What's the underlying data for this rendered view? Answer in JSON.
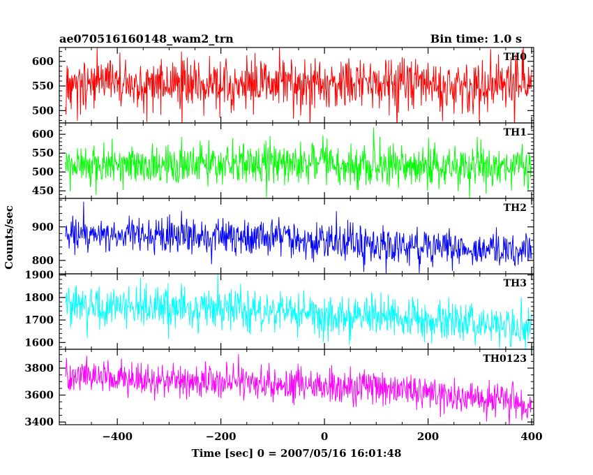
{
  "header": {
    "title": "ae070516160148_wam2_trn",
    "bin_time": "Bin time: 1.0 s"
  },
  "axes": {
    "xlabel": "Time [sec] 0 = 2007/05/16 16:01:48",
    "ylabel": "Counts/sec",
    "x_ticks": [
      "−400",
      "−200",
      "0",
      "200",
      "400"
    ]
  },
  "chart_data": {
    "type": "line",
    "xlim": [
      -512,
      404
    ],
    "x_range": [
      -500,
      400
    ],
    "x_step": 1,
    "x_ticks": [
      -400,
      -200,
      0,
      200,
      400
    ],
    "x_minor_step": 50,
    "panels": [
      {
        "name": "TH0",
        "color": "#ff0000",
        "ylim": [
          475,
          628
        ],
        "yticks": [
          500,
          550,
          600
        ],
        "ytick_labels": [
          "500",
          "550",
          "600"
        ],
        "y_minor_step": 10,
        "trend": [
          [
            -500,
            555
          ],
          [
            0,
            555
          ],
          [
            400,
            555
          ]
        ],
        "noise_sd": 27
      },
      {
        "name": "TH1",
        "color": "#00ff00",
        "ylim": [
          430,
          630
        ],
        "yticks": [
          450,
          500,
          550,
          600
        ],
        "ytick_labels": [
          "450",
          "500",
          "550",
          "600"
        ],
        "y_minor_step": 10,
        "trend": [
          [
            -500,
            520
          ],
          [
            0,
            520
          ],
          [
            400,
            515
          ]
        ],
        "noise_sd": 27
      },
      {
        "name": "TH2",
        "color": "#0000ff",
        "ylim": [
          760,
          985
        ],
        "yticks": [
          800,
          900
        ],
        "ytick_labels": [
          "800",
          "900"
        ],
        "y_minor_step": 20,
        "trend": [
          [
            -500,
            885
          ],
          [
            -200,
            870
          ],
          [
            0,
            855
          ],
          [
            200,
            840
          ],
          [
            400,
            825
          ]
        ],
        "noise_sd": 28
      },
      {
        "name": "TH3",
        "color": "#00ffff",
        "ylim": [
          1570,
          1905
        ],
        "yticks": [
          1600,
          1700,
          1800,
          1900
        ],
        "ytick_labels": [
          "1600",
          "1700",
          "1800",
          "1900"
        ],
        "y_minor_step": 20,
        "trend": [
          [
            -500,
            1760
          ],
          [
            -200,
            1745
          ],
          [
            0,
            1725
          ],
          [
            200,
            1700
          ],
          [
            400,
            1670
          ]
        ],
        "noise_sd": 45
      },
      {
        "name": "TH0123",
        "color": "#ff00ff",
        "ylim": [
          3380,
          3940
        ],
        "yticks": [
          3400,
          3600,
          3800
        ],
        "ytick_labels": [
          "3400",
          "3600",
          "3800"
        ],
        "y_minor_step": 50,
        "trend": [
          [
            -500,
            3730
          ],
          [
            -200,
            3710
          ],
          [
            0,
            3670
          ],
          [
            200,
            3610
          ],
          [
            400,
            3540
          ]
        ],
        "noise_sd": 65
      }
    ]
  }
}
